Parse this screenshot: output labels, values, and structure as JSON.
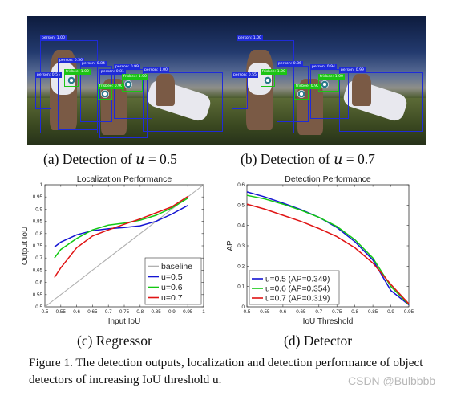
{
  "photos": {
    "left": {
      "boxes": [
        "person: 1.00",
        "person: 0.55",
        "person: 0.56",
        "person: 0.84",
        "person: 0.99",
        "person: 0.81",
        "person: 1.00",
        "frisbee: 1.00",
        "frisbee: 0.90",
        "frisbee: 1.00"
      ]
    },
    "right": {
      "boxes": [
        "person: 1.00",
        "person: 0.55",
        "person: 0.86",
        "person: 0.94",
        "person: 0.99",
        "frisbee: 1.00",
        "frisbee: 0.90",
        "frisbee: 1.00"
      ]
    }
  },
  "captions": {
    "a": "(a) Detection of ",
    "a_var": "u",
    "a_val": " = 0.5",
    "b": "(b) Detection of ",
    "b_var": "u",
    "b_val": " = 0.7",
    "c": "(c) Regressor",
    "d": "(d) Detector"
  },
  "figure_caption": "Figure 1. The detection outputs, localization and detection performance of object detectors of increasing IoU threshold u.",
  "watermark": "CSDN @Bulbbbb",
  "chart_data": [
    {
      "type": "line",
      "title": "Localization Performance",
      "xlabel": "Input IoU",
      "ylabel": "Output IoU",
      "xlim": [
        0.5,
        1
      ],
      "ylim": [
        0.5,
        1
      ],
      "xticks": [
        "0.5",
        "0.55",
        "0.6",
        "0.65",
        "0.7",
        "0.75",
        "0.8",
        "0.85",
        "0.9",
        "0.95",
        "1"
      ],
      "yticks": [
        "0.5",
        "0.55",
        "0.6",
        "0.65",
        "0.7",
        "0.75",
        "0.8",
        "0.85",
        "0.9",
        "0.95",
        "1"
      ],
      "grid": false,
      "legend": "bottom-right",
      "series": [
        {
          "name": "baseline",
          "color": "#b0b0b0",
          "x": [
            0.5,
            1.0
          ],
          "y": [
            0.5,
            1.0
          ]
        },
        {
          "name": "u=0.5",
          "color": "#1414d2",
          "x": [
            0.53,
            0.55,
            0.6,
            0.65,
            0.7,
            0.75,
            0.8,
            0.85,
            0.9,
            0.95
          ],
          "y": [
            0.745,
            0.765,
            0.795,
            0.812,
            0.82,
            0.825,
            0.832,
            0.85,
            0.88,
            0.915
          ]
        },
        {
          "name": "u=0.6",
          "color": "#12c812",
          "x": [
            0.53,
            0.55,
            0.6,
            0.65,
            0.7,
            0.75,
            0.8,
            0.85,
            0.9,
            0.95
          ],
          "y": [
            0.7,
            0.735,
            0.78,
            0.815,
            0.835,
            0.843,
            0.855,
            0.875,
            0.905,
            0.945
          ]
        },
        {
          "name": "u=0.7",
          "color": "#e01414",
          "x": [
            0.53,
            0.55,
            0.6,
            0.65,
            0.7,
            0.75,
            0.8,
            0.85,
            0.9,
            0.95
          ],
          "y": [
            0.62,
            0.66,
            0.742,
            0.79,
            0.815,
            0.838,
            0.86,
            0.885,
            0.91,
            0.952
          ]
        }
      ]
    },
    {
      "type": "line",
      "title": "Detection Performance",
      "xlabel": "IoU Threshold",
      "ylabel": "AP",
      "xlim": [
        0.5,
        0.95
      ],
      "ylim": [
        0,
        0.6
      ],
      "xticks": [
        "0.5",
        "0.55",
        "0.6",
        "0.65",
        "0.7",
        "0.75",
        "0.8",
        "0.85",
        "0.9",
        "0.95"
      ],
      "yticks": [
        "0",
        "0.1",
        "0.2",
        "0.3",
        "0.4",
        "0.5",
        "0.6"
      ],
      "grid": false,
      "legend": "bottom-left",
      "series": [
        {
          "name": "u=0.5 (AP=0.349)",
          "color": "#1414d2",
          "x": [
            0.5,
            0.55,
            0.6,
            0.65,
            0.7,
            0.75,
            0.8,
            0.85,
            0.9,
            0.95
          ],
          "y": [
            0.565,
            0.54,
            0.51,
            0.478,
            0.44,
            0.39,
            0.32,
            0.23,
            0.08,
            0.01
          ]
        },
        {
          "name": "u=0.6 (AP=0.354)",
          "color": "#12c812",
          "x": [
            0.5,
            0.55,
            0.6,
            0.65,
            0.7,
            0.75,
            0.8,
            0.85,
            0.9,
            0.95
          ],
          "y": [
            0.548,
            0.53,
            0.505,
            0.475,
            0.44,
            0.395,
            0.33,
            0.24,
            0.1,
            0.012
          ]
        },
        {
          "name": "u=0.7 (AP=0.319)",
          "color": "#e01414",
          "x": [
            0.5,
            0.55,
            0.6,
            0.65,
            0.7,
            0.75,
            0.8,
            0.85,
            0.9,
            0.95
          ],
          "y": [
            0.505,
            0.48,
            0.45,
            0.42,
            0.385,
            0.345,
            0.29,
            0.215,
            0.11,
            0.015
          ]
        }
      ]
    }
  ]
}
